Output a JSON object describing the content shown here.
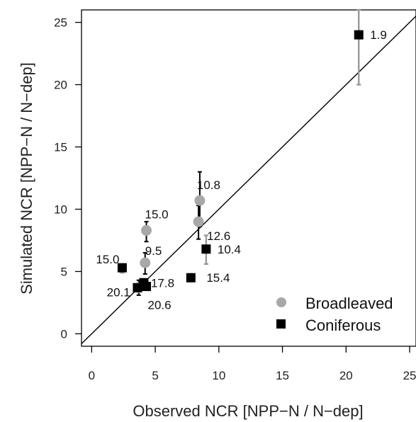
{
  "chart_data": {
    "type": "scatter",
    "xlabel": "Observed NCR [NPP−N / N−dep]",
    "ylabel": "Simulated NCR [NPP−N / N−dep]",
    "xlim": [
      -0.8,
      25.5
    ],
    "ylim": [
      -1.0,
      26.0
    ],
    "x_ticks": [
      "0",
      "5",
      "10",
      "15",
      "20",
      "25"
    ],
    "y_ticks": [
      "0",
      "5",
      "10",
      "15",
      "20",
      "25"
    ],
    "grid": false,
    "reference_line": "1:1 line",
    "legend_placement": "bottom-right",
    "series": [
      {
        "name": "Broadleaved",
        "marker": "circle",
        "color": "#a8a8a8",
        "error_bar_color": "#000000",
        "points": [
          {
            "x": 4.3,
            "y": 8.3,
            "label": "15.0",
            "err_low": 7.4,
            "err_high": 9.0
          },
          {
            "x": 8.5,
            "y": 10.7,
            "label": "10.8",
            "err_low": 8.6,
            "err_high": 13.0
          },
          {
            "x": 8.4,
            "y": 9.0,
            "label": "12.6",
            "err_low": 7.6,
            "err_high": 10.3
          },
          {
            "x": 4.2,
            "y": 5.7,
            "label": "9.5",
            "err_low": 4.8,
            "err_high": 6.5
          },
          {
            "x": 3.7,
            "y": 3.7,
            "label": "20.1",
            "err_low": 3.1,
            "err_high": 4.3
          }
        ]
      },
      {
        "name": "Coniferous",
        "marker": "square",
        "color": "#000000",
        "error_bar_color": "#999999",
        "points": [
          {
            "x": 21.0,
            "y": 24.0,
            "label": "1.9",
            "err_low": 20.0,
            "err_high": 26.0
          },
          {
            "x": 9.0,
            "y": 6.8,
            "label": "10.4",
            "err_low": 5.6,
            "err_high": 7.9
          },
          {
            "x": 2.4,
            "y": 5.3,
            "label": "15.0",
            "err_low": 4.9,
            "err_high": 5.6
          },
          {
            "x": 7.8,
            "y": 4.5,
            "label": "15.4",
            "err_low": 4.2,
            "err_high": 4.8
          },
          {
            "x": 4.1,
            "y": 4.1,
            "label": "17.8",
            "err_low": 3.8,
            "err_high": 4.4
          },
          {
            "x": 4.3,
            "y": 3.8,
            "label": "20.6",
            "err_low": 3.5,
            "err_high": 4.1
          },
          {
            "x": 3.6,
            "y": 3.7,
            "label": "",
            "err_low": 3.4,
            "err_high": 4.0
          }
        ]
      }
    ]
  }
}
